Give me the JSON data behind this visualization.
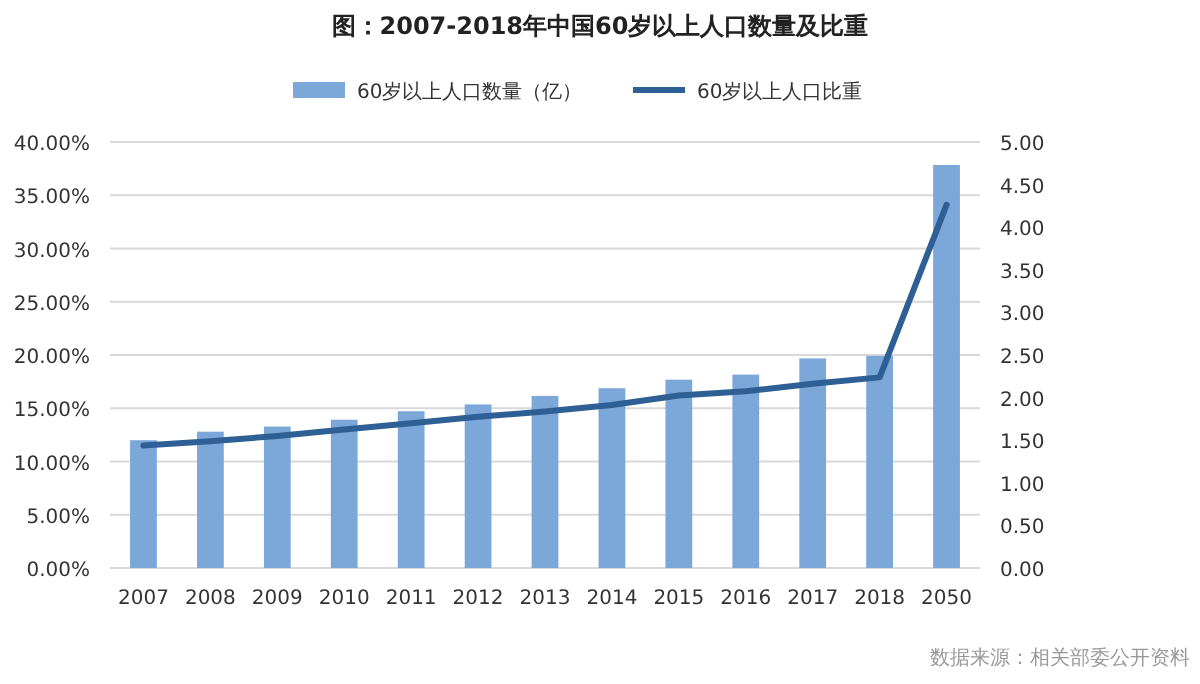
{
  "chart_data": {
    "type": "bar",
    "title": "图：2007-2018年中国60岁以上人口数量及比重",
    "categories": [
      "2007",
      "2008",
      "2009",
      "2010",
      "2011",
      "2012",
      "2013",
      "2014",
      "2015",
      "2016",
      "2017",
      "2018",
      "2050"
    ],
    "series": [
      {
        "name": "60岁以上人口数量（亿）",
        "axis": "y2",
        "color": "#7ba7d9",
        "values": [
          1.5,
          1.6,
          1.66,
          1.74,
          1.84,
          1.92,
          2.02,
          2.11,
          2.21,
          2.27,
          2.46,
          2.49,
          4.73
        ]
      },
      {
        "name": "60岁以上人口比重",
        "type": "line",
        "color": "#2e5f95",
        "values": [
          11.5,
          11.9,
          12.4,
          13.0,
          13.6,
          14.2,
          14.7,
          15.3,
          16.2,
          16.6,
          17.3,
          17.9,
          34.1
        ]
      }
    ],
    "ylim": [
      0,
      40
    ],
    "yticks": [
      {
        "value": 0,
        "label": "0.00%"
      },
      {
        "value": 5,
        "label": "5.00%"
      },
      {
        "value": 10,
        "label": "10.00%"
      },
      {
        "value": 15,
        "label": "15.00%"
      },
      {
        "value": 20,
        "label": "20.00%"
      },
      {
        "value": 25,
        "label": "25.00%"
      },
      {
        "value": 30,
        "label": "30.00%"
      },
      {
        "value": 35,
        "label": "35.00%"
      },
      {
        "value": 40,
        "label": "40.00%"
      }
    ],
    "y2lim": [
      0,
      5
    ],
    "y2ticks": [
      {
        "value": 0,
        "label": "0.00"
      },
      {
        "value": 0.5,
        "label": "0.50"
      },
      {
        "value": 1,
        "label": "1.00"
      },
      {
        "value": 1.5,
        "label": "1.50"
      },
      {
        "value": 2,
        "label": "2.00"
      },
      {
        "value": 2.5,
        "label": "2.50"
      },
      {
        "value": 3,
        "label": "3.00"
      },
      {
        "value": 3.5,
        "label": "3.50"
      },
      {
        "value": 4,
        "label": "4.00"
      },
      {
        "value": 4.5,
        "label": "4.50"
      },
      {
        "value": 5,
        "label": "5.00"
      }
    ],
    "grid": "y",
    "legend": "top",
    "marker": "none",
    "line_style": "solid",
    "annotations": [
      "数据来源：相关部委公开资料"
    ]
  }
}
